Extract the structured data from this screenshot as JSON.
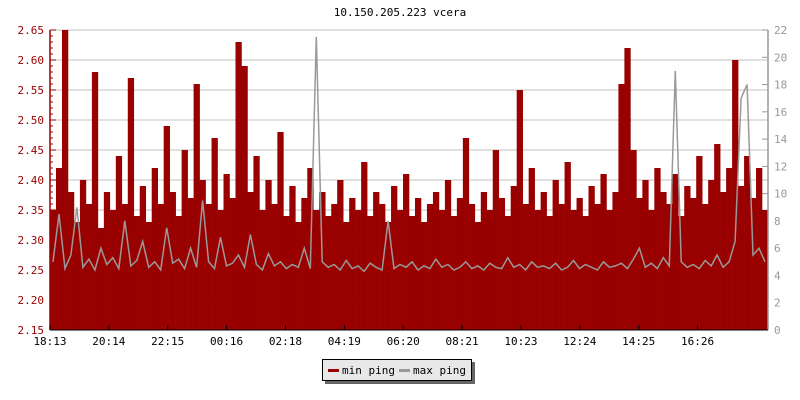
{
  "chart_data": {
    "type": "area",
    "title": "10.150.205.223 vcera",
    "x_tick_labels": [
      "18:13",
      "20:14",
      "22:15",
      "00:16",
      "02:18",
      "04:19",
      "06:20",
      "08:21",
      "10:23",
      "12:24",
      "14:25",
      "16:26"
    ],
    "y_left": {
      "ticks": [
        "2.15",
        "2.20",
        "2.25",
        "2.30",
        "2.35",
        "2.40",
        "2.45",
        "2.50",
        "2.55",
        "2.60",
        "2.65"
      ],
      "range": [
        2.15,
        2.65
      ],
      "color": "#990000"
    },
    "y_right": {
      "ticks": [
        "0",
        "2",
        "4",
        "6",
        "8",
        "10",
        "12",
        "14",
        "16",
        "18",
        "20",
        "22"
      ],
      "range": [
        0,
        22
      ],
      "color": "#999999"
    },
    "grid": true,
    "legend_placement": "bottom-center",
    "series": [
      {
        "name": "min ping",
        "axis": "left",
        "color": "#990000",
        "values": [
          2.35,
          2.42,
          2.65,
          2.38,
          2.33,
          2.4,
          2.36,
          2.58,
          2.32,
          2.38,
          2.35,
          2.44,
          2.36,
          2.57,
          2.34,
          2.39,
          2.33,
          2.42,
          2.36,
          2.49,
          2.38,
          2.34,
          2.45,
          2.37,
          2.56,
          2.4,
          2.36,
          2.47,
          2.35,
          2.41,
          2.37,
          2.63,
          2.59,
          2.38,
          2.44,
          2.35,
          2.4,
          2.36,
          2.48,
          2.34,
          2.39,
          2.33,
          2.37,
          2.42,
          2.35,
          2.38,
          2.34,
          2.36,
          2.4,
          2.33,
          2.37,
          2.35,
          2.43,
          2.34,
          2.38,
          2.36,
          2.33,
          2.39,
          2.35,
          2.41,
          2.34,
          2.37,
          2.33,
          2.36,
          2.38,
          2.35,
          2.4,
          2.34,
          2.37,
          2.47,
          2.36,
          2.33,
          2.38,
          2.35,
          2.45,
          2.37,
          2.34,
          2.39,
          2.55,
          2.36,
          2.42,
          2.35,
          2.38,
          2.34,
          2.4,
          2.36,
          2.43,
          2.35,
          2.37,
          2.34,
          2.39,
          2.36,
          2.41,
          2.35,
          2.38,
          2.56,
          2.62,
          2.45,
          2.37,
          2.4,
          2.35,
          2.42,
          2.38,
          2.36,
          2.41,
          2.34,
          2.39,
          2.37,
          2.44,
          2.36,
          2.4,
          2.46,
          2.38,
          2.42,
          2.6,
          2.39,
          2.44,
          2.37,
          2.42,
          2.35
        ]
      },
      {
        "name": "max ping",
        "axis": "right",
        "color": "#999999",
        "values": [
          5.0,
          8.5,
          4.5,
          5.5,
          9.0,
          4.6,
          5.2,
          4.4,
          6.0,
          4.8,
          5.3,
          4.5,
          8.0,
          4.7,
          5.1,
          6.5,
          4.6,
          5.0,
          4.4,
          7.5,
          4.9,
          5.2,
          4.5,
          6.0,
          4.6,
          9.5,
          5.0,
          4.5,
          6.8,
          4.7,
          4.9,
          5.5,
          4.6,
          7.0,
          4.8,
          4.4,
          5.6,
          4.7,
          5.0,
          4.5,
          4.8,
          4.6,
          6.0,
          4.5,
          21.5,
          5.0,
          4.6,
          4.8,
          4.4,
          5.1,
          4.5,
          4.7,
          4.3,
          4.9,
          4.6,
          4.4,
          8.0,
          4.5,
          4.8,
          4.6,
          5.0,
          4.4,
          4.7,
          4.5,
          5.2,
          4.6,
          4.8,
          4.4,
          4.6,
          5.0,
          4.5,
          4.7,
          4.4,
          4.9,
          4.6,
          4.5,
          5.3,
          4.6,
          4.8,
          4.4,
          5.0,
          4.6,
          4.7,
          4.5,
          4.9,
          4.4,
          4.6,
          5.1,
          4.5,
          4.8,
          4.6,
          4.4,
          5.0,
          4.6,
          4.7,
          4.9,
          4.5,
          5.2,
          6.0,
          4.6,
          4.9,
          4.5,
          5.3,
          4.7,
          19.0,
          5.0,
          4.6,
          4.8,
          4.5,
          5.1,
          4.7,
          5.5,
          4.6,
          5.0,
          6.5,
          17.0,
          18.0,
          5.5,
          6.0,
          5.0
        ]
      }
    ]
  }
}
